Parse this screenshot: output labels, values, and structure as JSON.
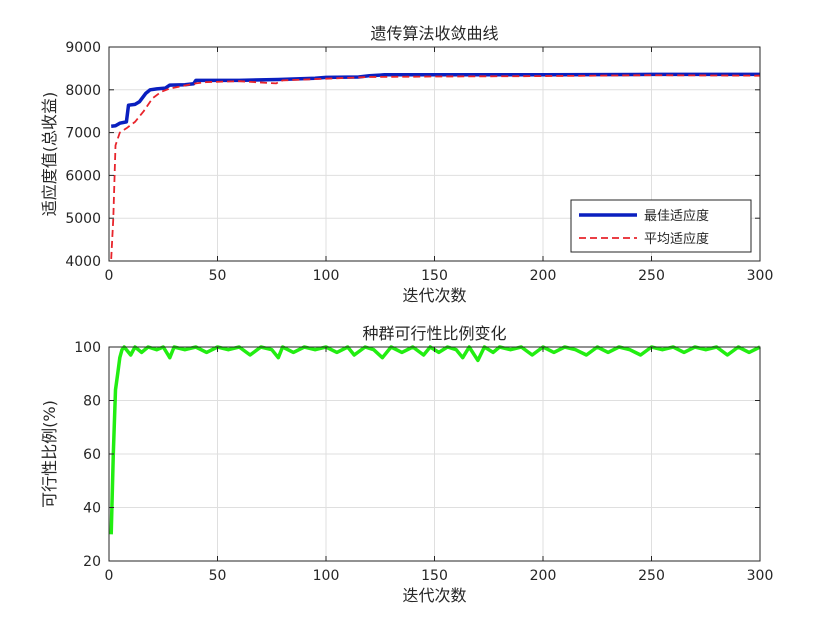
{
  "chart_data": [
    {
      "type": "line",
      "title": "遗传算法收敛曲线",
      "xlabel": "迭代次数",
      "ylabel": "适应度值(总收益)",
      "xlim": [
        0,
        300
      ],
      "ylim": [
        4000,
        9000
      ],
      "xticks": [
        "0",
        "50",
        "100",
        "150",
        "200",
        "250",
        "300"
      ],
      "yticks": [
        "4000",
        "5000",
        "6000",
        "7000",
        "8000",
        "9000"
      ],
      "grid": true,
      "legend_position": "bottom-right",
      "series": [
        {
          "name": "最佳适应度",
          "color": "#0a1fbf",
          "style": "solid",
          "points": [
            [
              1,
              7150
            ],
            [
              3,
              7160
            ],
            [
              5,
              7220
            ],
            [
              8,
              7250
            ],
            [
              9,
              7640
            ],
            [
              12,
              7660
            ],
            [
              14,
              7720
            ],
            [
              17,
              7920
            ],
            [
              19,
              8000
            ],
            [
              22,
              8020
            ],
            [
              26,
              8040
            ],
            [
              28,
              8110
            ],
            [
              35,
              8120
            ],
            [
              39,
              8140
            ],
            [
              40,
              8220
            ],
            [
              60,
              8220
            ],
            [
              78,
              8240
            ],
            [
              95,
              8270
            ],
            [
              100,
              8290
            ],
            [
              115,
              8300
            ],
            [
              120,
              8330
            ],
            [
              127,
              8350
            ],
            [
              150,
              8350
            ],
            [
              200,
              8350
            ],
            [
              250,
              8360
            ],
            [
              300,
              8360
            ]
          ]
        },
        {
          "name": "平均适应度",
          "color": "#e8242b",
          "style": "dashed",
          "points": [
            [
              1,
              4050
            ],
            [
              2,
              5000
            ],
            [
              3,
              6700
            ],
            [
              5,
              7000
            ],
            [
              8,
              7100
            ],
            [
              12,
              7250
            ],
            [
              16,
              7500
            ],
            [
              20,
              7800
            ],
            [
              24,
              7950
            ],
            [
              28,
              8030
            ],
            [
              35,
              8100
            ],
            [
              40,
              8150
            ],
            [
              45,
              8180
            ],
            [
              60,
              8200
            ],
            [
              77,
              8150
            ],
            [
              80,
              8220
            ],
            [
              100,
              8260
            ],
            [
              120,
              8300
            ],
            [
              150,
              8310
            ],
            [
              200,
              8320
            ],
            [
              250,
              8340
            ],
            [
              300,
              8330
            ]
          ]
        }
      ]
    },
    {
      "type": "line",
      "title": "种群可行性比例变化",
      "xlabel": "迭代次数",
      "ylabel": "可行性比例(%)",
      "xlim": [
        0,
        300
      ],
      "ylim": [
        20,
        100
      ],
      "xticks": [
        "0",
        "50",
        "100",
        "150",
        "200",
        "250",
        "300"
      ],
      "yticks": [
        "20",
        "40",
        "60",
        "80",
        "100"
      ],
      "grid": true,
      "series": [
        {
          "color": "#22ee11",
          "style": "solid",
          "points": [
            [
              1,
              30
            ],
            [
              2,
              60
            ],
            [
              3,
              84
            ],
            [
              4,
              90
            ],
            [
              5,
              96
            ],
            [
              6,
              99
            ],
            [
              7,
              100
            ],
            [
              10,
              97
            ],
            [
              12,
              100
            ],
            [
              15,
              98
            ],
            [
              18,
              100
            ],
            [
              22,
              99
            ],
            [
              25,
              100
            ],
            [
              28,
              96
            ],
            [
              30,
              100
            ],
            [
              35,
              99
            ],
            [
              40,
              100
            ],
            [
              45,
              98
            ],
            [
              50,
              100
            ],
            [
              55,
              99
            ],
            [
              60,
              100
            ],
            [
              65,
              97
            ],
            [
              70,
              100
            ],
            [
              75,
              99
            ],
            [
              78,
              96
            ],
            [
              80,
              100
            ],
            [
              85,
              98
            ],
            [
              90,
              100
            ],
            [
              95,
              99
            ],
            [
              100,
              100
            ],
            [
              105,
              98
            ],
            [
              110,
              100
            ],
            [
              113,
              97
            ],
            [
              118,
              100
            ],
            [
              122,
              99
            ],
            [
              126,
              96
            ],
            [
              130,
              100
            ],
            [
              135,
              98
            ],
            [
              140,
              100
            ],
            [
              145,
              97
            ],
            [
              148,
              100
            ],
            [
              152,
              98
            ],
            [
              156,
              100
            ],
            [
              160,
              99
            ],
            [
              163,
              96
            ],
            [
              166,
              100
            ],
            [
              170,
              95
            ],
            [
              173,
              100
            ],
            [
              177,
              98
            ],
            [
              180,
              100
            ],
            [
              185,
              99
            ],
            [
              190,
              100
            ],
            [
              195,
              97
            ],
            [
              200,
              100
            ],
            [
              205,
              98
            ],
            [
              210,
              100
            ],
            [
              215,
              99
            ],
            [
              220,
              97
            ],
            [
              225,
              100
            ],
            [
              230,
              98
            ],
            [
              235,
              100
            ],
            [
              240,
              99
            ],
            [
              245,
              97
            ],
            [
              250,
              100
            ],
            [
              255,
              99
            ],
            [
              260,
              100
            ],
            [
              265,
              98
            ],
            [
              270,
              100
            ],
            [
              275,
              99
            ],
            [
              280,
              100
            ],
            [
              285,
              97
            ],
            [
              290,
              100
            ],
            [
              295,
              98
            ],
            [
              300,
              100
            ]
          ]
        }
      ]
    }
  ]
}
